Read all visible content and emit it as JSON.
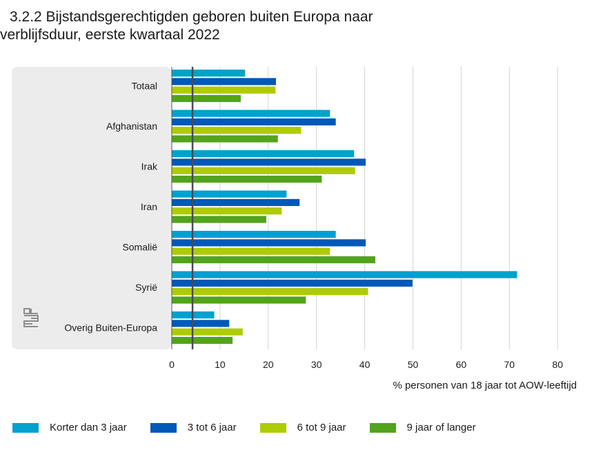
{
  "title_line1": "3.2.2 Bijstandsgerechtigden geboren buiten Europa naar",
  "title_line2": "verblijfsduur, eerste kwartaal 2022",
  "chart_data": {
    "type": "bar",
    "orientation": "horizontal",
    "categories": [
      "Totaal",
      "Afghanistan",
      "Irak",
      "Iran",
      "Somalië",
      "Syrië",
      "Overig Buiten-Europa"
    ],
    "series": [
      {
        "name": "Korter dan 3 jaar",
        "color": "#00a1cd",
        "values": [
          15.2,
          32.8,
          37.8,
          23.8,
          34.0,
          71.6,
          8.8
        ]
      },
      {
        "name": "3 tot 6 jaar",
        "color": "#0058b8",
        "values": [
          21.6,
          34.0,
          40.2,
          26.5,
          40.2,
          49.9,
          11.9
        ]
      },
      {
        "name": "6 tot 9 jaar",
        "color": "#afcb05",
        "values": [
          21.5,
          26.8,
          38.0,
          22.8,
          32.8,
          40.7,
          14.7
        ]
      },
      {
        "name": "9 jaar of langer",
        "color": "#53a31d",
        "values": [
          14.3,
          22.0,
          31.1,
          19.6,
          42.2,
          27.8,
          12.6
        ]
      }
    ],
    "xlabel": "% personen van 18 jaar tot AOW-leeftijd",
    "xticks": [
      0,
      10,
      20,
      30,
      40,
      50,
      60,
      70,
      80
    ],
    "xlim": [
      0,
      80
    ],
    "reference_line": 4.3,
    "grid": true,
    "legend_position": "bottom"
  }
}
